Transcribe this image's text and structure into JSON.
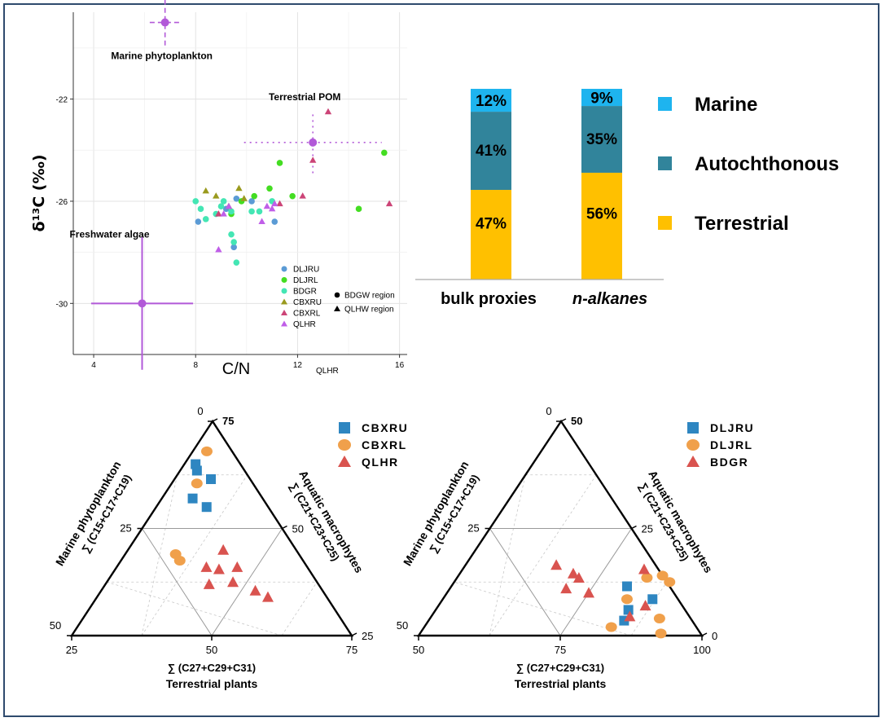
{
  "chart_data": [
    {
      "type": "scatter",
      "xlabel": "C/N",
      "ylabel": "δ¹³C (‰)",
      "xlim": [
        3.2,
        16.3
      ],
      "ylim": [
        -32.0,
        -18.6
      ],
      "xticks": [
        4,
        8,
        12,
        16
      ],
      "yticks": [
        -30,
        -26,
        -22
      ],
      "grid": true,
      "stray_label": "QLHR",
      "endmembers": [
        {
          "name": "Marine phytoplankton",
          "x": 6.8,
          "y": -19.0,
          "xerr": 0.6,
          "yerr": 0.9
        },
        {
          "name": "Terrestrial POM",
          "x": 12.6,
          "y": -23.7,
          "xerr": 2.7,
          "yerr": 1.2
        },
        {
          "name": "Freshwater algae",
          "x": 5.9,
          "y": -30.0,
          "xerr": 2.0,
          "yerr": 2.6
        }
      ],
      "legend_series": [
        "DLJRU",
        "DLJRL",
        "BDGR",
        "CBXRU",
        "CBXRL",
        "QLHR"
      ],
      "legend_shapes": [
        "BDGW region",
        "QLHW region"
      ],
      "series": [
        {
          "name": "DLJRU",
          "color": "#5b9bd5",
          "marker": "circle",
          "points": [
            [
              8.1,
              -26.8
            ],
            [
              9.2,
              -26.3
            ],
            [
              9.5,
              -27.8
            ],
            [
              9.6,
              -25.9
            ],
            [
              10.2,
              -26.0
            ],
            [
              11.1,
              -26.8
            ]
          ]
        },
        {
          "name": "DLJRL",
          "color": "#44dd22",
          "marker": "circle",
          "points": [
            [
              9.4,
              -26.5
            ],
            [
              9.8,
              -26.0
            ],
            [
              10.3,
              -25.8
            ],
            [
              10.9,
              -25.5
            ],
            [
              11.3,
              -24.5
            ],
            [
              11.8,
              -25.8
            ],
            [
              14.4,
              -26.3
            ],
            [
              15.4,
              -24.1
            ]
          ]
        },
        {
          "name": "BDGR",
          "color": "#44e6b4",
          "marker": "circle",
          "points": [
            [
              8.0,
              -26.0
            ],
            [
              8.2,
              -26.3
            ],
            [
              8.4,
              -26.7
            ],
            [
              8.8,
              -26.5
            ],
            [
              9.0,
              -26.2
            ],
            [
              9.1,
              -26.0
            ],
            [
              9.4,
              -26.4
            ],
            [
              9.4,
              -27.3
            ],
            [
              9.5,
              -27.6
            ],
            [
              9.6,
              -28.4
            ],
            [
              10.2,
              -26.4
            ],
            [
              10.5,
              -26.4
            ],
            [
              11.0,
              -26.0
            ]
          ]
        },
        {
          "name": "CBXRU",
          "color": "#9a9a1e",
          "marker": "triangle",
          "points": [
            [
              8.4,
              -25.6
            ],
            [
              8.8,
              -25.8
            ],
            [
              9.3,
              -26.2
            ],
            [
              9.7,
              -25.5
            ],
            [
              9.9,
              -25.9
            ]
          ]
        },
        {
          "name": "CBXRL",
          "color": "#cc4477",
          "marker": "triangle",
          "points": [
            [
              8.9,
              -26.5
            ],
            [
              11.3,
              -26.1
            ],
            [
              12.2,
              -25.8
            ],
            [
              12.6,
              -24.4
            ],
            [
              13.2,
              -22.5
            ],
            [
              15.6,
              -26.1
            ]
          ]
        },
        {
          "name": "QLHR",
          "color": "#c05ee8",
          "marker": "triangle",
          "points": [
            [
              8.9,
              -27.9
            ],
            [
              9.1,
              -26.5
            ],
            [
              9.3,
              -26.2
            ],
            [
              10.6,
              -26.8
            ],
            [
              10.8,
              -26.2
            ],
            [
              11.0,
              -26.3
            ],
            [
              11.1,
              -26.1
            ]
          ]
        }
      ]
    },
    {
      "type": "bar",
      "stacked": true,
      "categories": [
        "bulk proxies",
        "n-alkanes"
      ],
      "ylim": [
        0,
        100
      ],
      "series": [
        {
          "name": "Terrestrial",
          "color": "#ffc000",
          "values": [
            47,
            56
          ],
          "labels": [
            "47%",
            "56%"
          ]
        },
        {
          "name": "Autochthonous",
          "color": "#31849b",
          "values": [
            41,
            35
          ],
          "labels": [
            "41%",
            "35%"
          ]
        },
        {
          "name": "Marine",
          "color": "#1eb4ef",
          "values": [
            12,
            9
          ],
          "labels": [
            "12%",
            "9%"
          ]
        }
      ],
      "legend": [
        "Marine",
        "Autochthonous",
        "Terrestrial"
      ],
      "legend_placement": "right"
    },
    {
      "type": "ternary",
      "axes": {
        "left": {
          "title": "Marine phytoplankton",
          "formula": "∑ (C15+C17+C19)"
        },
        "right": {
          "title": "Aquatic macrophytes",
          "formula": "∑ (C21+C23+C25)"
        },
        "bottom": {
          "title": "Terrestrial plants",
          "formula": "∑ (C27+C29+C31)"
        }
      },
      "tick_labels": {
        "left": [
          "50",
          "25",
          "0"
        ],
        "right": [
          "75",
          "50",
          "25"
        ],
        "bottom": [
          "25",
          "50",
          "75"
        ]
      },
      "legend": [
        "CBXRU",
        "CBXRL",
        "QLHR"
      ],
      "series": [
        {
          "name": "CBXRU",
          "color": "#2e86c1",
          "marker": "square",
          "points": [
            [
              0.18,
              0.6
            ],
            [
              0.11,
              0.64
            ],
            [
              0.13,
              0.73
            ],
            [
              0.06,
              0.77
            ],
            [
              0.04,
              0.8
            ]
          ]
        },
        {
          "name": "CBXRL",
          "color": "#f0a04b",
          "marker": "circle",
          "points": [
            [
              0.21,
              0.35
            ],
            [
              0.18,
              0.38
            ],
            [
              0.05,
              0.86
            ],
            [
              0.09,
              0.71
            ]
          ]
        },
        {
          "name": "QLHR",
          "color": "#d9534f",
          "marker": "triangle",
          "points": [
            [
              0.55,
              0.21
            ],
            [
              0.61,
              0.18
            ],
            [
              0.37,
              0.24
            ],
            [
              0.37,
              0.31
            ],
            [
              0.43,
              0.32
            ],
            [
              0.32,
              0.32
            ],
            [
              0.45,
              0.25
            ],
            [
              0.34,
              0.4
            ]
          ]
        }
      ]
    },
    {
      "type": "ternary",
      "axes": {
        "left": {
          "title": "Marine phytoplankton",
          "formula": "∑ (C15+C17+C19)"
        },
        "right": {
          "title": "Aquatic macrophytes",
          "formula": "∑ (C21+C23+C25)"
        },
        "bottom": {
          "title": "Terrestrial plants",
          "formula": "∑ (C27+C29+C31)"
        }
      },
      "tick_labels": {
        "left": [
          "50",
          "25",
          "0"
        ],
        "right": [
          "50",
          "25",
          "0"
        ],
        "bottom": [
          "50",
          "75",
          "100"
        ]
      },
      "legend": [
        "DLJRU",
        "DLJRL",
        "BDGR"
      ],
      "series": [
        {
          "name": "DLJRU",
          "color": "#2e86c1",
          "marker": "square",
          "points": [
            [
              0.68,
              0.12
            ],
            [
              0.69,
              0.07
            ],
            [
              0.62,
              0.23
            ],
            [
              0.74,
              0.17
            ]
          ]
        },
        {
          "name": "DLJRL",
          "color": "#f0a04b",
          "marker": "circle",
          "points": [
            [
              0.67,
              0.27
            ],
            [
              0.66,
              0.04
            ],
            [
              0.76,
              0.25
            ],
            [
              0.85,
              0.01
            ],
            [
              0.72,
              0.28
            ],
            [
              0.65,
              0.17
            ],
            [
              0.81,
              0.08
            ]
          ]
        },
        {
          "name": "BDGR",
          "color": "#d9534f",
          "marker": "triangle",
          "points": [
            [
              0.5,
              0.2
            ],
            [
              0.43,
              0.27
            ],
            [
              0.41,
              0.22
            ],
            [
              0.4,
              0.29
            ],
            [
              0.32,
              0.33
            ],
            [
              0.7,
              0.09
            ],
            [
              0.73,
              0.14
            ],
            [
              0.64,
              0.31
            ]
          ]
        }
      ]
    }
  ]
}
